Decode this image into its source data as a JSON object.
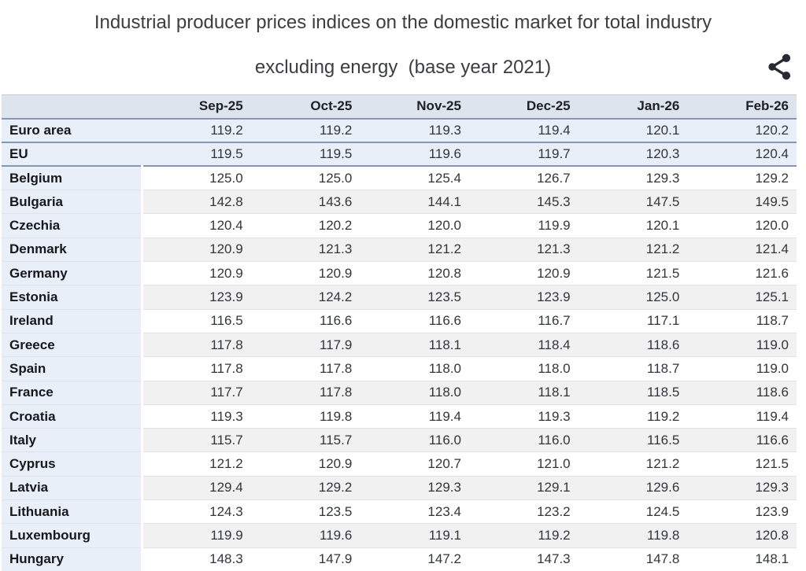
{
  "header": {
    "title_line1": "Industrial producer prices indices on the domestic market for total industry",
    "title_line2": "excluding energy  (base year 2021)",
    "share_icon": "share-icon"
  },
  "colors": {
    "header_bg": "#dde4ee",
    "aggregate_row_bg": "#e9eff8",
    "name_column_bg": "#e9eff8",
    "stripe_bg": "#f1f1f1",
    "heavy_divider": "#8498b5",
    "light_divider": "#e2e2e2",
    "icon": "#262b33"
  },
  "chart_data": {
    "type": "table",
    "title": "Industrial producer prices indices on the domestic market for total industry excluding energy (base year 2021)",
    "base_year": 2021,
    "categories": [
      "Sep-25",
      "Oct-25",
      "Nov-25",
      "Dec-25",
      "Jan-26",
      "Feb-26"
    ],
    "series": [
      {
        "name": "Euro area",
        "type": "aggregate",
        "values": [
          119.2,
          119.2,
          119.3,
          119.4,
          120.1,
          120.2
        ]
      },
      {
        "name": "EU",
        "type": "aggregate",
        "values": [
          119.5,
          119.5,
          119.6,
          119.7,
          120.3,
          120.4
        ]
      },
      {
        "name": "Belgium",
        "type": "country",
        "values": [
          125.0,
          125.0,
          125.4,
          126.7,
          129.3,
          129.2
        ]
      },
      {
        "name": "Bulgaria",
        "type": "country",
        "values": [
          142.8,
          143.6,
          144.1,
          145.3,
          147.5,
          149.5
        ]
      },
      {
        "name": "Czechia",
        "type": "country",
        "values": [
          120.4,
          120.2,
          120.0,
          119.9,
          120.1,
          120.0
        ]
      },
      {
        "name": "Denmark",
        "type": "country",
        "values": [
          120.9,
          121.3,
          121.2,
          121.3,
          121.2,
          121.4
        ]
      },
      {
        "name": "Germany",
        "type": "country",
        "values": [
          120.9,
          120.9,
          120.8,
          120.9,
          121.5,
          121.6
        ]
      },
      {
        "name": "Estonia",
        "type": "country",
        "values": [
          123.9,
          124.2,
          123.5,
          123.9,
          125.0,
          125.1
        ]
      },
      {
        "name": "Ireland",
        "type": "country",
        "values": [
          116.5,
          116.6,
          116.6,
          116.7,
          117.1,
          118.7
        ]
      },
      {
        "name": "Greece",
        "type": "country",
        "values": [
          117.8,
          117.9,
          118.1,
          118.4,
          118.6,
          119.0
        ]
      },
      {
        "name": "Spain",
        "type": "country",
        "values": [
          117.8,
          117.8,
          118.0,
          118.0,
          118.7,
          119.0
        ]
      },
      {
        "name": "France",
        "type": "country",
        "values": [
          117.7,
          117.8,
          118.0,
          118.1,
          118.5,
          118.6
        ]
      },
      {
        "name": "Croatia",
        "type": "country",
        "values": [
          119.3,
          119.8,
          119.4,
          119.3,
          119.2,
          119.4
        ]
      },
      {
        "name": "Italy",
        "type": "country",
        "values": [
          115.7,
          115.7,
          116.0,
          116.0,
          116.5,
          116.6
        ]
      },
      {
        "name": "Cyprus",
        "type": "country",
        "values": [
          121.2,
          120.9,
          120.7,
          121.0,
          121.2,
          121.5
        ]
      },
      {
        "name": "Latvia",
        "type": "country",
        "values": [
          129.4,
          129.2,
          129.3,
          129.1,
          129.6,
          129.3
        ]
      },
      {
        "name": "Lithuania",
        "type": "country",
        "values": [
          124.3,
          123.5,
          123.4,
          123.2,
          124.5,
          123.9
        ]
      },
      {
        "name": "Luxembourg",
        "type": "country",
        "values": [
          119.9,
          119.6,
          119.1,
          119.2,
          119.8,
          120.8
        ]
      },
      {
        "name": "Hungary",
        "type": "country",
        "values": [
          148.3,
          147.9,
          147.2,
          147.3,
          147.8,
          148.1
        ]
      }
    ]
  }
}
